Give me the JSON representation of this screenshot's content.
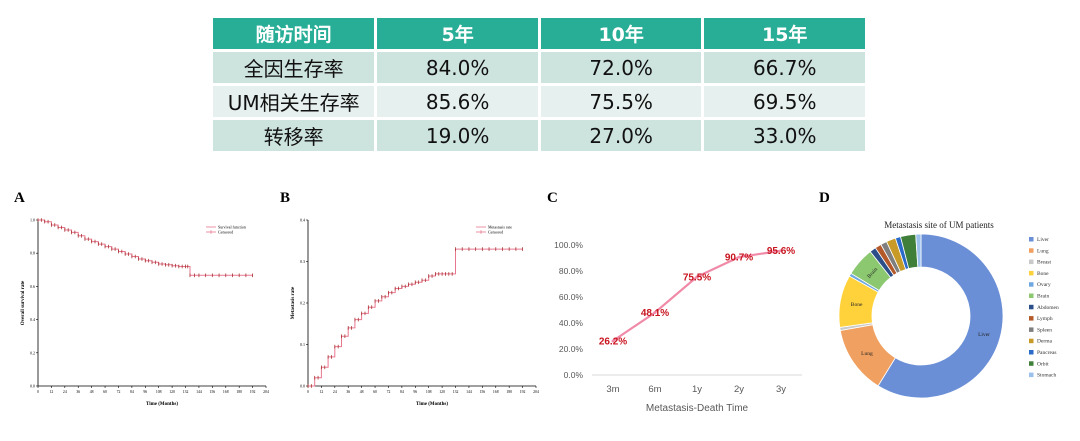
{
  "table": {
    "headers": [
      "随访时间",
      "5年",
      "10年",
      "15年"
    ],
    "rows": [
      {
        "label": "全因生存率",
        "values": [
          "84.0%",
          "72.0%",
          "66.7%"
        ]
      },
      {
        "label": "UM相关生存率",
        "values": [
          "85.6%",
          "75.5%",
          "69.5%"
        ]
      },
      {
        "label": "转移率",
        "values": [
          "19.0%",
          "27.0%",
          "33.0%"
        ]
      }
    ]
  },
  "panels": {
    "a": "A",
    "b": "B",
    "c": "C",
    "d": "D"
  },
  "colors": {
    "header": "#28ad96",
    "km_curve": "#a83232",
    "km_line": "#e87890",
    "line_c": "#f08aa8",
    "label_c": "#c8141e"
  },
  "chart_data": [
    {
      "type": "line",
      "panel": "A",
      "title": "",
      "xlabel": "Time (Months)",
      "ylabel": "Overall survival rate",
      "xlim": [
        0,
        204
      ],
      "ylim": [
        0.0,
        1.0
      ],
      "x_ticks": [
        0,
        12,
        24,
        36,
        48,
        60,
        72,
        84,
        96,
        108,
        120,
        132,
        144,
        156,
        168,
        180,
        192,
        204
      ],
      "y_ticks": [
        "0.0",
        "0.2",
        "0.4",
        "0.6",
        "0.8",
        "1.0"
      ],
      "legend": [
        "Survival function",
        "Censored"
      ],
      "legend_position": "top-right",
      "series": [
        {
          "name": "Survival function",
          "x": [
            0,
            6,
            12,
            18,
            24,
            30,
            36,
            42,
            48,
            54,
            60,
            66,
            72,
            78,
            84,
            90,
            96,
            102,
            108,
            114,
            120,
            126,
            132,
            136,
            144,
            156,
            168,
            180,
            192
          ],
          "y": [
            1.0,
            0.99,
            0.97,
            0.955,
            0.94,
            0.925,
            0.905,
            0.885,
            0.87,
            0.855,
            0.84,
            0.825,
            0.81,
            0.795,
            0.78,
            0.765,
            0.755,
            0.745,
            0.735,
            0.73,
            0.725,
            0.72,
            0.72,
            0.667,
            0.667,
            0.667,
            0.667,
            0.667,
            0.667
          ]
        }
      ]
    },
    {
      "type": "line",
      "panel": "B",
      "title": "",
      "xlabel": "Time (Months)",
      "ylabel": "Metastasis rate",
      "xlim": [
        0,
        204
      ],
      "ylim": [
        0.0,
        0.4
      ],
      "x_ticks": [
        0,
        12,
        24,
        36,
        48,
        60,
        72,
        84,
        96,
        108,
        120,
        132,
        144,
        156,
        168,
        180,
        192,
        204
      ],
      "y_ticks": [
        "0.0",
        "0.1",
        "0.2",
        "0.3",
        "0.4"
      ],
      "legend": [
        "Metastasis rate",
        "Censored"
      ],
      "legend_position": "top-right",
      "series": [
        {
          "name": "Metastasis rate",
          "x": [
            0,
            6,
            12,
            18,
            24,
            30,
            36,
            42,
            48,
            54,
            60,
            66,
            72,
            78,
            84,
            90,
            96,
            102,
            108,
            114,
            120,
            126,
            132,
            144,
            156,
            168,
            180,
            192
          ],
          "y": [
            0.0,
            0.02,
            0.045,
            0.07,
            0.095,
            0.12,
            0.14,
            0.16,
            0.175,
            0.19,
            0.205,
            0.215,
            0.225,
            0.235,
            0.24,
            0.245,
            0.25,
            0.255,
            0.265,
            0.27,
            0.27,
            0.27,
            0.33,
            0.33,
            0.33,
            0.33,
            0.33,
            0.33
          ]
        }
      ]
    },
    {
      "type": "line",
      "panel": "C",
      "title": "",
      "xlabel": "Metastasis-Death Time",
      "ylabel": "",
      "categories": [
        "3m",
        "6m",
        "1y",
        "2y",
        "3y"
      ],
      "values": [
        26.2,
        48.1,
        75.5,
        90.7,
        95.6
      ],
      "data_labels": [
        "26.2%",
        "48.1%",
        "75.5%",
        "90.7%",
        "95.6%"
      ],
      "ylim": [
        0,
        100
      ],
      "y_ticks": [
        "0.0%",
        "20.0%",
        "40.0%",
        "60.0%",
        "80.0%",
        "100.0%"
      ],
      "grid": false
    },
    {
      "type": "pie",
      "panel": "D",
      "title": "Metastasis site of UM patients",
      "legend_position": "right",
      "slices": [
        {
          "name": "Liver",
          "value": 57.0,
          "color": "#6b8fd6",
          "label": "Liver"
        },
        {
          "name": "Lung",
          "value": 13.0,
          "color": "#f0a060",
          "label": "Lung"
        },
        {
          "name": "Breast",
          "value": 0.6,
          "color": "#c9c9c9",
          "label": ""
        },
        {
          "name": "Bone",
          "value": 10.0,
          "color": "#ffd23c",
          "label": "Bone"
        },
        {
          "name": "Ovary",
          "value": 0.6,
          "color": "#6fa8e0",
          "label": ""
        },
        {
          "name": "Brain",
          "value": 5.5,
          "color": "#8cc870",
          "label": "Brain"
        },
        {
          "name": "Abdomen",
          "value": 1.2,
          "color": "#2c4f8a",
          "label": ""
        },
        {
          "name": "Lymph",
          "value": 1.2,
          "color": "#b45a2a",
          "label": ""
        },
        {
          "name": "Spleen",
          "value": 1.2,
          "color": "#7f7f7f",
          "label": ""
        },
        {
          "name": "Derma",
          "value": 1.8,
          "color": "#c89a28",
          "label": ""
        },
        {
          "name": "Pancreas",
          "value": 1.0,
          "color": "#2a6ac8",
          "label": ""
        },
        {
          "name": "Orbit",
          "value": 2.9,
          "color": "#3f7f3a",
          "label": ""
        },
        {
          "name": "Stomach",
          "value": 1.0,
          "color": "#9cc0ec",
          "label": ""
        }
      ]
    }
  ]
}
